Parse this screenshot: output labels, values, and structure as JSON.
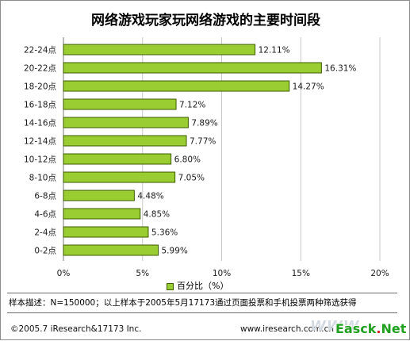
{
  "title": "网络游戏玩家玩网络游戏的主要时间段",
  "chart_data": {
    "type": "bar",
    "orientation": "horizontal",
    "categories": [
      "22-24点",
      "20-22点",
      "18-20点",
      "16-18点",
      "14-16点",
      "12-14点",
      "10-12点",
      "8-10点",
      "6-8点",
      "4-6点",
      "2-4点",
      "0-2点"
    ],
    "values": [
      12.11,
      16.31,
      14.27,
      7.12,
      7.89,
      7.77,
      6.8,
      7.05,
      4.48,
      4.85,
      5.36,
      5.99
    ],
    "data_labels": [
      "12.11%",
      "16.31%",
      "14.27%",
      "7.12%",
      "7.89%",
      "7.77%",
      "6.80%",
      "7.05%",
      "4.48%",
      "4.85%",
      "5.36%",
      "5.99%"
    ],
    "x_ticks": [
      "0%",
      "5%",
      "10%",
      "15%",
      "20%"
    ],
    "xlim": [
      0,
      20
    ],
    "series": [
      {
        "name": "百分比（%）",
        "color": "#9acd32"
      }
    ],
    "legend_position": "bottom",
    "grid": true
  },
  "note": "样本描述：N=150000；以上样本于2005年5月17173通过页面投票和手机投票两种筛选获得",
  "footer": {
    "copyright": "©2005.7 iResearch&17173 Inc.",
    "website": "www.iresearch.com.cn",
    "watermark_faint": "WWW",
    "watermark_logo_main": "Easck",
    "watermark_logo_dot": ".",
    "watermark_logo_end": "Net"
  }
}
